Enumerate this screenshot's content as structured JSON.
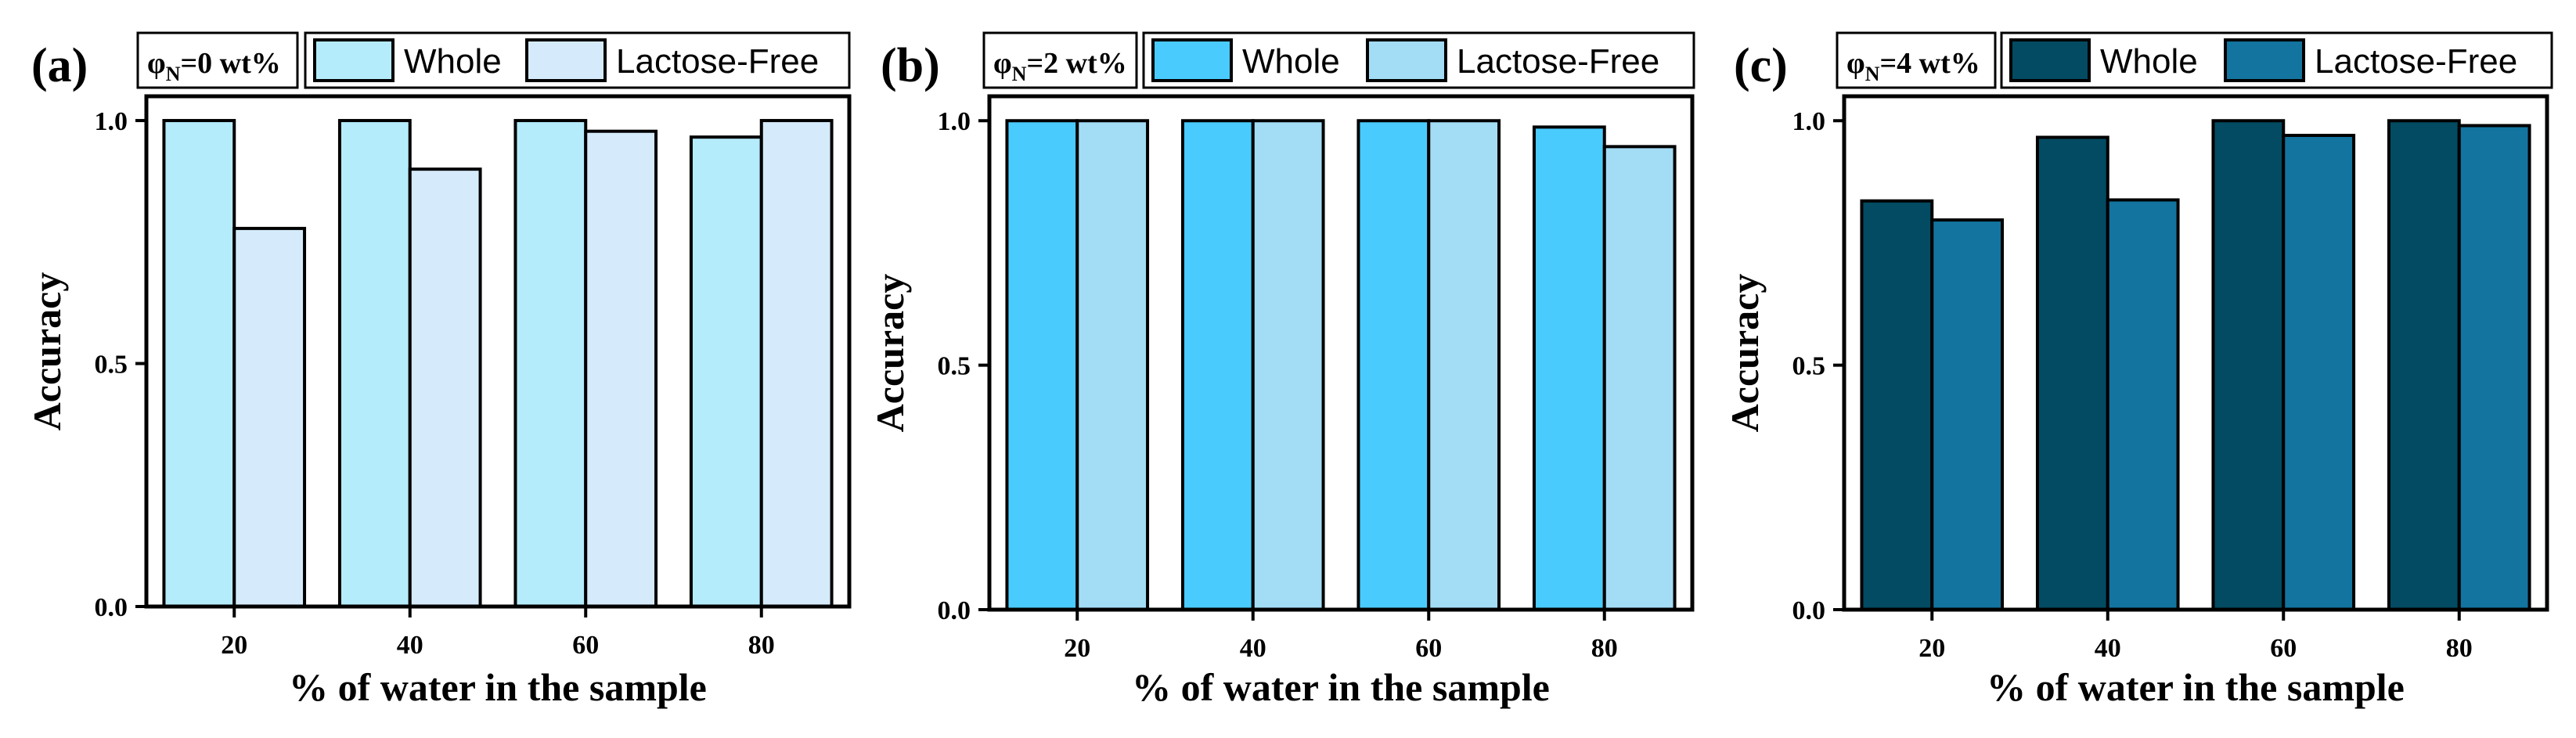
{
  "chart_data": [
    {
      "type": "bar",
      "panel_label": "(a)",
      "annotation": {
        "symbol": "φ",
        "subscript": "N",
        "text": "=0 wt%"
      },
      "categories": [
        "20",
        "40",
        "60",
        "80"
      ],
      "series": [
        {
          "name": "Whole",
          "values": [
            1.0,
            1.0,
            1.0,
            0.966
          ],
          "color": "#b5ecfb"
        },
        {
          "name": "Lactose-Free",
          "values": [
            0.778,
            0.9,
            0.978,
            1.0
          ],
          "color": "#d5ebfb"
        }
      ],
      "xlabel": "% of water in the sample",
      "ylabel": "Accuracy",
      "ylim": [
        0,
        1.05
      ],
      "yticks": [
        "0.0",
        "0.5",
        "1.0"
      ],
      "legend": "top"
    },
    {
      "type": "bar",
      "panel_label": "(b)",
      "annotation": {
        "symbol": "φ",
        "subscript": "N",
        "text": "=2 wt%"
      },
      "categories": [
        "20",
        "40",
        "60",
        "80"
      ],
      "series": [
        {
          "name": "Whole",
          "values": [
            1.0,
            1.0,
            1.0,
            0.987
          ],
          "color": "#49cbfd"
        },
        {
          "name": "Lactose-Free",
          "values": [
            1.0,
            1.0,
            1.0,
            0.947
          ],
          "color": "#a3dcf5"
        }
      ],
      "xlabel": "% of water in the sample",
      "ylabel": "Accuracy",
      "ylim": [
        0,
        1.05
      ],
      "yticks": [
        "0.0",
        "0.5",
        "1.0"
      ],
      "legend": "top"
    },
    {
      "type": "bar",
      "panel_label": "(c)",
      "annotation": {
        "symbol": "φ",
        "subscript": "N",
        "text": "=4 wt%"
      },
      "categories": [
        "20",
        "40",
        "60",
        "80"
      ],
      "series": [
        {
          "name": "Whole",
          "values": [
            0.836,
            0.966,
            1.0,
            1.0
          ],
          "color": "#024b62"
        },
        {
          "name": "Lactose-Free",
          "values": [
            0.797,
            0.838,
            0.97,
            0.99
          ],
          "color": "#12749f"
        }
      ],
      "xlabel": "% of water in the sample",
      "ylabel": "Accuracy",
      "ylim": [
        0,
        1.05
      ],
      "yticks": [
        "0.0",
        "0.5",
        "1.0"
      ],
      "legend": "top"
    }
  ]
}
